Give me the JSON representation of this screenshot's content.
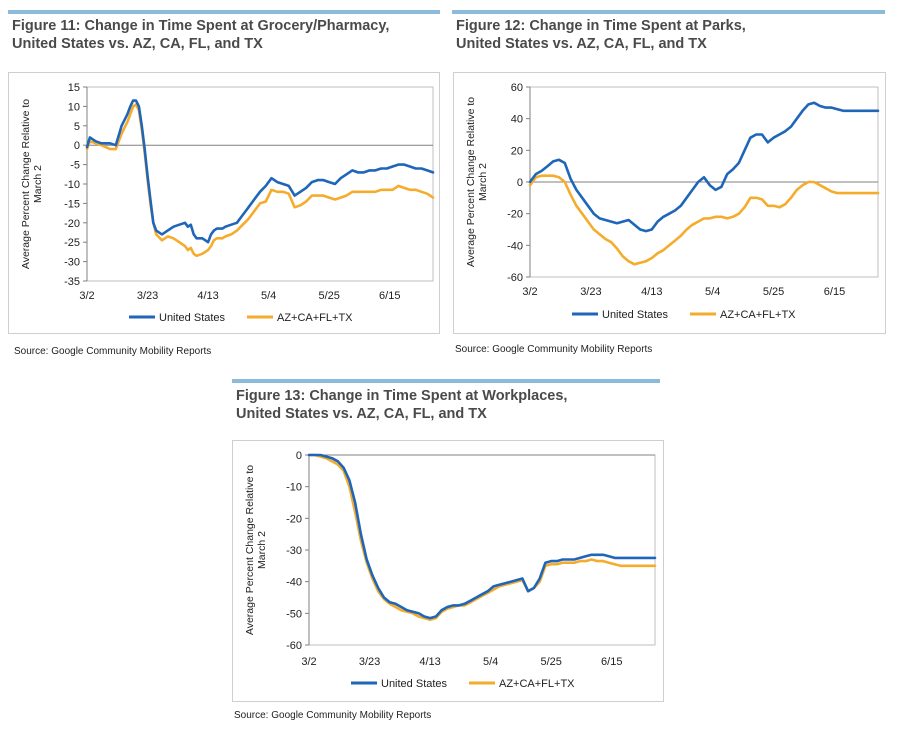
{
  "colors": {
    "us": "#1f66b8",
    "states": "#f5ac2c",
    "rule": "#8bbbd9"
  },
  "figures": [
    {
      "title_line1": "Figure 11: Change in Time Spent at Grocery/Pharmacy,",
      "title_line2": "United States vs. AZ, CA, FL, and TX",
      "source": "Source: Google Community Mobility Reports"
    },
    {
      "title_line1": "Figure 12: Change in Time Spent at Parks,",
      "title_line2": "United States vs. AZ, CA, FL, and TX",
      "source": "Source: Google Community Mobility Reports"
    },
    {
      "title_line1": "Figure 13: Change in Time Spent at Workplaces,",
      "title_line2": "United States vs. AZ, CA, FL, and TX",
      "source": "Source: Google Community Mobility Reports"
    }
  ],
  "chart_data": [
    {
      "type": "line",
      "title": "Figure 11: Change in Time Spent at Grocery/Pharmacy, United States vs. AZ, CA, FL, and TX",
      "ylabel": "Average Percent Change Relative to March 2",
      "xlabel": "",
      "x_tick_labels": [
        "3/2",
        "3/23",
        "4/13",
        "5/4",
        "5/25",
        "6/15"
      ],
      "x_tick_days": [
        0,
        21,
        42,
        63,
        84,
        105
      ],
      "x_range": [
        0,
        120
      ],
      "ylim": [
        -35,
        15
      ],
      "y_ticks": [
        15,
        10,
        5,
        0,
        -5,
        -10,
        -15,
        -20,
        -25,
        -30,
        -35
      ],
      "legend": "bottom",
      "series": [
        {
          "name": "United States",
          "x": [
            0,
            1,
            3,
            5,
            8,
            10,
            12,
            14,
            15,
            16,
            17,
            18,
            19,
            20,
            21,
            22,
            23,
            24,
            26,
            28,
            30,
            32,
            34,
            35,
            36,
            37,
            38,
            40,
            42,
            43,
            44,
            45,
            46,
            47,
            48,
            50,
            52,
            54,
            56,
            58,
            60,
            62,
            64,
            66,
            68,
            70,
            72,
            74,
            76,
            78,
            80,
            82,
            84,
            86,
            88,
            90,
            92,
            94,
            96,
            98,
            100,
            102,
            104,
            106,
            108,
            110,
            112,
            114,
            116,
            118,
            120
          ],
          "values": [
            -0.5,
            2,
            1,
            0.5,
            0.5,
            0,
            5,
            8,
            10,
            11.5,
            11.5,
            10,
            5,
            -1,
            -8,
            -14,
            -20,
            -22,
            -23,
            -22,
            -21,
            -20.5,
            -20,
            -21,
            -20.5,
            -23,
            -24,
            -24,
            -25,
            -23,
            -22,
            -21.5,
            -21.5,
            -21.5,
            -21,
            -20.5,
            -20,
            -18,
            -16,
            -14,
            -12,
            -10.5,
            -8.5,
            -9.5,
            -10,
            -10.5,
            -13,
            -12,
            -11,
            -9.5,
            -9,
            -9,
            -9.5,
            -10,
            -8.5,
            -7.5,
            -6.5,
            -7,
            -7,
            -6.5,
            -6.5,
            -6,
            -6,
            -5.5,
            -5,
            -5,
            -5.5,
            -6,
            -6,
            -6.5,
            -7
          ]
        },
        {
          "name": "AZ+CA+FL+TX",
          "x": [
            0,
            1,
            3,
            5,
            8,
            10,
            12,
            14,
            15,
            16,
            17,
            18,
            19,
            20,
            21,
            22,
            23,
            24,
            26,
            28,
            30,
            32,
            34,
            35,
            36,
            37,
            38,
            40,
            42,
            43,
            44,
            45,
            46,
            47,
            48,
            50,
            52,
            54,
            56,
            58,
            60,
            62,
            64,
            66,
            68,
            70,
            72,
            74,
            76,
            78,
            80,
            82,
            84,
            86,
            88,
            90,
            92,
            94,
            96,
            98,
            100,
            102,
            104,
            106,
            108,
            110,
            112,
            114,
            116,
            118,
            120
          ],
          "values": [
            -1,
            1,
            0.5,
            0,
            -1,
            -1,
            3,
            6,
            8,
            10,
            10.5,
            9,
            4,
            -2,
            -9,
            -15,
            -20,
            -23,
            -24.5,
            -23.5,
            -24,
            -25,
            -26,
            -27,
            -26.5,
            -28,
            -28.5,
            -28,
            -27,
            -26,
            -24.5,
            -24,
            -24,
            -24,
            -23.5,
            -23,
            -22,
            -20.5,
            -19,
            -17,
            -15,
            -14.5,
            -11.5,
            -12,
            -12,
            -12.5,
            -16,
            -15.5,
            -14.5,
            -13,
            -13,
            -13,
            -13.5,
            -14,
            -13.5,
            -13,
            -12,
            -12,
            -12,
            -12,
            -12,
            -11.5,
            -11.5,
            -11.5,
            -10.5,
            -11,
            -11.5,
            -11.5,
            -12,
            -12.5,
            -13.5
          ]
        }
      ]
    },
    {
      "type": "line",
      "title": "Figure 12: Change in Time Spent at Parks, United States vs. AZ, CA, FL, and TX",
      "ylabel": "Average Percent Change Relative to March 2",
      "xlabel": "",
      "x_tick_labels": [
        "3/2",
        "3/23",
        "4/13",
        "5/4",
        "5/25",
        "6/15"
      ],
      "x_tick_days": [
        0,
        21,
        42,
        63,
        84,
        105
      ],
      "x_range": [
        0,
        120
      ],
      "ylim": [
        -60,
        60
      ],
      "y_ticks": [
        60,
        40,
        20,
        0,
        -20,
        -40,
        -60
      ],
      "legend": "bottom",
      "series": [
        {
          "name": "United States",
          "x": [
            0,
            2,
            4,
            6,
            8,
            10,
            12,
            14,
            16,
            18,
            20,
            22,
            24,
            26,
            28,
            30,
            32,
            34,
            36,
            38,
            40,
            42,
            44,
            46,
            48,
            50,
            52,
            54,
            56,
            58,
            60,
            62,
            64,
            66,
            68,
            70,
            72,
            74,
            76,
            78,
            80,
            82,
            84,
            86,
            88,
            90,
            92,
            94,
            96,
            98,
            100,
            102,
            104,
            106,
            108,
            110,
            112,
            114,
            116,
            118,
            120
          ],
          "values": [
            0,
            5,
            7,
            10,
            13,
            14,
            12,
            2,
            -5,
            -10,
            -15,
            -20,
            -23,
            -24,
            -25,
            -26,
            -25,
            -24,
            -27,
            -30,
            -31,
            -30,
            -25,
            -22,
            -20,
            -18,
            -15,
            -10,
            -5,
            0,
            3,
            -2,
            -5,
            -3,
            5,
            8,
            12,
            20,
            28,
            30,
            30,
            25,
            28,
            30,
            32,
            35,
            40,
            45,
            49,
            50,
            48,
            47,
            47,
            46,
            45,
            45,
            45,
            45,
            45,
            45,
            45
          ]
        },
        {
          "name": "AZ+CA+FL+TX",
          "x": [
            0,
            2,
            4,
            6,
            8,
            10,
            12,
            14,
            16,
            18,
            20,
            22,
            24,
            26,
            28,
            30,
            32,
            34,
            36,
            38,
            40,
            42,
            44,
            46,
            48,
            50,
            52,
            54,
            56,
            58,
            60,
            62,
            64,
            66,
            68,
            70,
            72,
            74,
            76,
            78,
            80,
            82,
            84,
            86,
            88,
            90,
            92,
            94,
            96,
            98,
            100,
            102,
            104,
            106,
            108,
            110,
            112,
            114,
            116,
            118,
            120
          ],
          "values": [
            -2,
            3,
            4,
            4,
            4,
            3,
            0,
            -8,
            -15,
            -20,
            -25,
            -30,
            -33,
            -36,
            -38,
            -42,
            -47,
            -50,
            -52,
            -51,
            -50,
            -48,
            -45,
            -43,
            -40,
            -37,
            -34,
            -30,
            -27,
            -25,
            -23,
            -23,
            -22,
            -22,
            -23,
            -22,
            -20,
            -16,
            -10,
            -10,
            -11,
            -15,
            -15,
            -16,
            -14,
            -10,
            -5,
            -2,
            0,
            0,
            -2,
            -4,
            -6,
            -7,
            -7,
            -7,
            -7,
            -7,
            -7,
            -7,
            -7
          ]
        }
      ]
    },
    {
      "type": "line",
      "title": "Figure 13: Change in Time Spent at Workplaces, United States vs. AZ, CA, FL, and TX",
      "ylabel": "Average Percent Change Relative to March 2",
      "xlabel": "",
      "x_tick_labels": [
        "3/2",
        "3/23",
        "4/13",
        "5/4",
        "5/25",
        "6/15"
      ],
      "x_tick_days": [
        0,
        21,
        42,
        63,
        84,
        105
      ],
      "x_range": [
        0,
        120
      ],
      "ylim": [
        -60,
        0
      ],
      "y_ticks": [
        0,
        -10,
        -20,
        -30,
        -40,
        -50,
        -60
      ],
      "legend": "bottom",
      "series": [
        {
          "name": "United States",
          "x": [
            0,
            2,
            4,
            6,
            8,
            10,
            12,
            14,
            16,
            18,
            20,
            22,
            24,
            26,
            28,
            30,
            32,
            34,
            36,
            38,
            40,
            42,
            44,
            46,
            48,
            50,
            52,
            54,
            56,
            58,
            60,
            62,
            64,
            66,
            68,
            70,
            72,
            74,
            76,
            78,
            80,
            82,
            84,
            86,
            88,
            90,
            92,
            94,
            96,
            98,
            100,
            102,
            104,
            106,
            108,
            110,
            112,
            114,
            116,
            118,
            120
          ],
          "values": [
            0,
            0,
            0,
            -0.5,
            -1,
            -2,
            -4,
            -8,
            -15,
            -25,
            -33,
            -38,
            -42,
            -45,
            -46.5,
            -47,
            -48,
            -49,
            -49.5,
            -50,
            -51,
            -51.5,
            -51,
            -49,
            -48,
            -47.5,
            -47.5,
            -47,
            -46,
            -45,
            -44,
            -43,
            -41.5,
            -41,
            -40.5,
            -40,
            -39.5,
            -39,
            -43,
            -42,
            -39,
            -34,
            -33.5,
            -33.5,
            -33,
            -33,
            -33,
            -32.5,
            -32,
            -31.5,
            -31.5,
            -31.5,
            -32,
            -32.5,
            -32.5,
            -32.5,
            -32.5,
            -32.5,
            -32.5,
            -32.5,
            -32.5
          ]
        },
        {
          "name": "AZ+CA+FL+TX",
          "x": [
            0,
            2,
            4,
            6,
            8,
            10,
            12,
            14,
            16,
            18,
            20,
            22,
            24,
            26,
            28,
            30,
            32,
            34,
            36,
            38,
            40,
            42,
            44,
            46,
            48,
            50,
            52,
            54,
            56,
            58,
            60,
            62,
            64,
            66,
            68,
            70,
            72,
            74,
            76,
            78,
            80,
            82,
            84,
            86,
            88,
            90,
            92,
            94,
            96,
            98,
            100,
            102,
            104,
            106,
            108,
            110,
            112,
            114,
            116,
            118,
            120
          ],
          "values": [
            0,
            0,
            -0.5,
            -1,
            -2,
            -3,
            -5,
            -10,
            -18,
            -27,
            -34,
            -39,
            -43,
            -45.5,
            -47,
            -48,
            -49,
            -49.5,
            -50,
            -51,
            -51.5,
            -52,
            -51.5,
            -49.5,
            -48.5,
            -48,
            -47.5,
            -47.5,
            -46.5,
            -45.5,
            -44.5,
            -43.5,
            -42.5,
            -41.5,
            -41,
            -40.5,
            -40,
            -39.5,
            -43,
            -42,
            -40,
            -35,
            -34.5,
            -34.5,
            -34,
            -34,
            -34,
            -33.5,
            -33.5,
            -33,
            -33.5,
            -33.5,
            -34,
            -34.5,
            -35,
            -35,
            -35,
            -35,
            -35,
            -35,
            -35
          ]
        }
      ]
    }
  ]
}
